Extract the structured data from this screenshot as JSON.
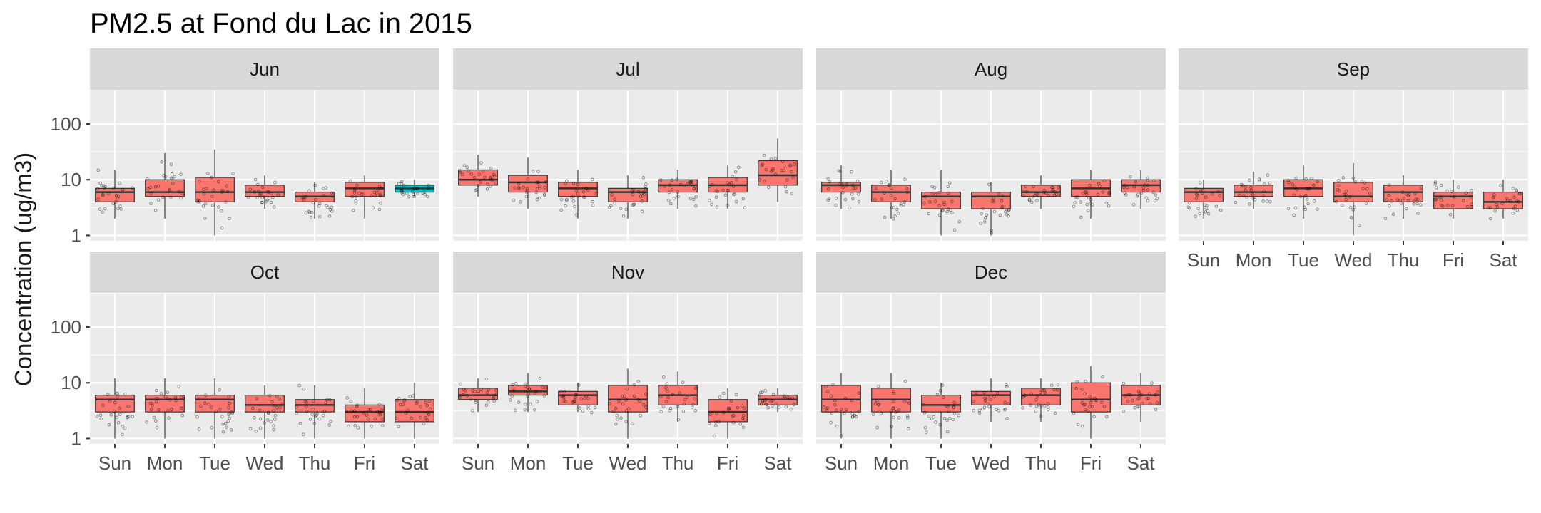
{
  "chart_data": {
    "type": "boxplot",
    "title": "PM2.5 at Fond du Lac in 2015",
    "xlabel": "",
    "ylabel": "Concentration (ug/m3)",
    "yscale": "log10",
    "ylim": [
      0.8,
      400
    ],
    "yticks": [
      1,
      10,
      100
    ],
    "ytick_labels": [
      "1",
      "10",
      "100"
    ],
    "categories": [
      "Sun",
      "Mon",
      "Tue",
      "Wed",
      "Thu",
      "Fri",
      "Sat"
    ],
    "grid": true,
    "colors": {
      "box": "#F8766D",
      "highlight": "#00BFC4",
      "panel": "#EBEBEB",
      "strip": "#D9D9D9"
    },
    "panels": [
      {
        "month": "Jun",
        "boxes": [
          {
            "q1": 4,
            "med": 6,
            "q3": 7,
            "lo": 2,
            "hi": 15
          },
          {
            "q1": 5,
            "med": 6,
            "q3": 10,
            "lo": 2,
            "hi": 30
          },
          {
            "q1": 4,
            "med": 6,
            "q3": 11,
            "lo": 1,
            "hi": 35
          },
          {
            "q1": 5,
            "med": 6,
            "q3": 8,
            "lo": 3,
            "hi": 12
          },
          {
            "q1": 4,
            "med": 5,
            "q3": 6,
            "lo": 2,
            "hi": 9
          },
          {
            "q1": 5,
            "med": 7,
            "q3": 9,
            "lo": 2,
            "hi": 12
          },
          {
            "q1": 6,
            "med": 7,
            "q3": 8,
            "lo": 5,
            "hi": 10,
            "highlight": true
          }
        ]
      },
      {
        "month": "Jul",
        "boxes": [
          {
            "q1": 8,
            "med": 10,
            "q3": 15,
            "lo": 5,
            "hi": 28
          },
          {
            "q1": 6,
            "med": 9,
            "q3": 12,
            "lo": 3,
            "hi": 25
          },
          {
            "q1": 5,
            "med": 7,
            "q3": 9,
            "lo": 2,
            "hi": 15
          },
          {
            "q1": 4,
            "med": 6,
            "q3": 7,
            "lo": 2,
            "hi": 12
          },
          {
            "q1": 6,
            "med": 8,
            "q3": 10,
            "lo": 3,
            "hi": 15
          },
          {
            "q1": 6,
            "med": 8,
            "q3": 11,
            "lo": 3,
            "hi": 18
          },
          {
            "q1": 8,
            "med": 12,
            "q3": 22,
            "lo": 4,
            "hi": 55
          }
        ]
      },
      {
        "month": "Aug",
        "boxes": [
          {
            "q1": 6,
            "med": 8,
            "q3": 9,
            "lo": 3,
            "hi": 18
          },
          {
            "q1": 4,
            "med": 6,
            "q3": 8,
            "lo": 2,
            "hi": 15
          },
          {
            "q1": 3,
            "med": 5,
            "q3": 6,
            "lo": 1,
            "hi": 15
          },
          {
            "q1": 3,
            "med": 5,
            "q3": 6,
            "lo": 1,
            "hi": 9
          },
          {
            "q1": 5,
            "med": 6,
            "q3": 8,
            "lo": 3,
            "hi": 12
          },
          {
            "q1": 5,
            "med": 7,
            "q3": 10,
            "lo": 2,
            "hi": 15
          },
          {
            "q1": 6,
            "med": 8,
            "q3": 10,
            "lo": 3,
            "hi": 15
          }
        ]
      },
      {
        "month": "Sep",
        "boxes": [
          {
            "q1": 4,
            "med": 6,
            "q3": 7,
            "lo": 2,
            "hi": 10
          },
          {
            "q1": 5,
            "med": 6,
            "q3": 8,
            "lo": 3,
            "hi": 14
          },
          {
            "q1": 5,
            "med": 7,
            "q3": 10,
            "lo": 2,
            "hi": 18
          },
          {
            "q1": 4,
            "med": 5,
            "q3": 9,
            "lo": 1,
            "hi": 20
          },
          {
            "q1": 4,
            "med": 6,
            "q3": 8,
            "lo": 2,
            "hi": 12
          },
          {
            "q1": 3,
            "med": 5,
            "q3": 6,
            "lo": 2,
            "hi": 10
          },
          {
            "q1": 3,
            "med": 4,
            "q3": 6,
            "lo": 2,
            "hi": 10
          }
        ]
      },
      {
        "month": "Oct",
        "boxes": [
          {
            "q1": 3,
            "med": 5,
            "q3": 6,
            "lo": 1,
            "hi": 12
          },
          {
            "q1": 3,
            "med": 5,
            "q3": 6,
            "lo": 1,
            "hi": 12
          },
          {
            "q1": 3,
            "med": 5,
            "q3": 6,
            "lo": 1,
            "hi": 12
          },
          {
            "q1": 3,
            "med": 4,
            "q3": 6,
            "lo": 1,
            "hi": 9
          },
          {
            "q1": 3,
            "med": 4,
            "q3": 5,
            "lo": 1,
            "hi": 9
          },
          {
            "q1": 2,
            "med": 3,
            "q3": 4,
            "lo": 1,
            "hi": 8
          },
          {
            "q1": 2,
            "med": 3,
            "q3": 5,
            "lo": 1,
            "hi": 10
          }
        ]
      },
      {
        "month": "Nov",
        "boxes": [
          {
            "q1": 5,
            "med": 6,
            "q3": 8,
            "lo": 3,
            "hi": 12
          },
          {
            "q1": 6,
            "med": 7,
            "q3": 9,
            "lo": 3,
            "hi": 15
          },
          {
            "q1": 4,
            "med": 6,
            "q3": 7,
            "lo": 3,
            "hi": 10
          },
          {
            "q1": 3,
            "med": 5,
            "q3": 9,
            "lo": 1,
            "hi": 18
          },
          {
            "q1": 4,
            "med": 6,
            "q3": 9,
            "lo": 2,
            "hi": 16
          },
          {
            "q1": 2,
            "med": 3,
            "q3": 5,
            "lo": 1,
            "hi": 8
          },
          {
            "q1": 4,
            "med": 5,
            "q3": 6,
            "lo": 3,
            "hi": 8
          }
        ]
      },
      {
        "month": "Dec",
        "boxes": [
          {
            "q1": 3,
            "med": 5,
            "q3": 9,
            "lo": 1,
            "hi": 15
          },
          {
            "q1": 3,
            "med": 5,
            "q3": 8,
            "lo": 1,
            "hi": 15
          },
          {
            "q1": 3,
            "med": 4,
            "q3": 6,
            "lo": 1,
            "hi": 10
          },
          {
            "q1": 4,
            "med": 6,
            "q3": 7,
            "lo": 2,
            "hi": 12
          },
          {
            "q1": 4,
            "med": 6,
            "q3": 8,
            "lo": 2,
            "hi": 12
          },
          {
            "q1": 3,
            "med": 5,
            "q3": 10,
            "lo": 1,
            "hi": 20
          },
          {
            "q1": 4,
            "med": 6,
            "q3": 9,
            "lo": 2,
            "hi": 15
          }
        ]
      }
    ]
  }
}
